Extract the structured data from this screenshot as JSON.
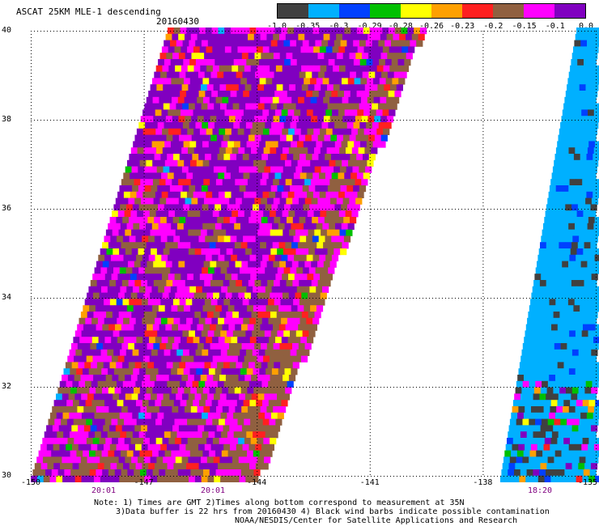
{
  "header": {
    "title": "ASCAT 25KM MLE-1 descending",
    "date": "20160430"
  },
  "colorbar": {
    "colors": [
      "#404040",
      "#00b0ff",
      "#0040ff",
      "#00c000",
      "#ffff00",
      "#ffa000",
      "#ff2020",
      "#906040",
      "#ff00ff",
      "#8000c0"
    ],
    "labels": [
      "-1.0",
      "-0.35",
      "-0.3",
      "-0.29",
      "-0.28",
      "-0.26",
      "-0.23",
      "-0.2",
      "-0.15",
      "-0.1",
      "0.0"
    ]
  },
  "axes": {
    "lat_labels": [
      "40",
      "38",
      "36",
      "34",
      "32",
      "30"
    ],
    "lon_labels": [
      "-150",
      "-147",
      "-144",
      "-141",
      "-138",
      "-135"
    ]
  },
  "pass_times": [
    "20:01",
    "20:01",
    "18:20"
  ],
  "notes": {
    "line1": "Note: 1) Times are GMT 2)Times along bottom correspond to measurement at 35N",
    "line2": "3)Data buffer is 22 hrs from 20160430 4) Black wind barbs indicate possible contamination",
    "line3": "NOAA/NESDIS/Center for Satellite Applications and Research"
  }
}
